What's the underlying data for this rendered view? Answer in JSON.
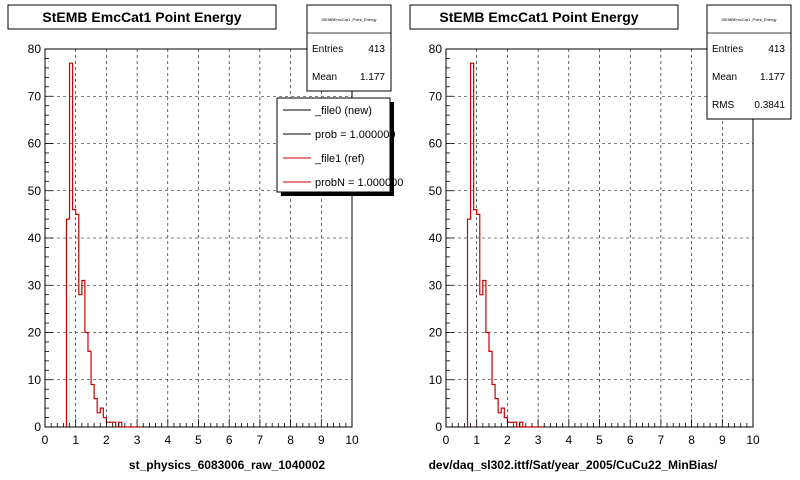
{
  "chart_data": [
    {
      "type": "step",
      "title": "StEMB EmcCat1 Point Energy",
      "xlabel": "st_physics_6083006_raw_1040002",
      "xlim": [
        0,
        10
      ],
      "ylim": [
        0,
        80
      ],
      "x_ticks": [
        0,
        1,
        2,
        3,
        4,
        5,
        6,
        7,
        8,
        9,
        10
      ],
      "y_ticks": [
        0,
        10,
        20,
        30,
        40,
        50,
        60,
        70,
        80
      ],
      "grid": true,
      "bin_width": 0.1,
      "x_start": 0.7,
      "series": [
        {
          "name": "_file1 (ref)",
          "color": "#cc0000",
          "values": [
            44,
            77,
            46,
            45,
            28,
            31,
            20,
            16,
            9,
            6,
            3,
            4,
            2,
            1,
            1,
            1,
            0,
            1,
            0,
            0,
            0,
            0,
            0,
            0
          ]
        }
      ],
      "stats": {
        "header": "StEMBEmcCat1_Point_Energy",
        "entries_label": "Entries",
        "entries": "413",
        "mean_label": "Mean",
        "mean": "1.177"
      },
      "legend": [
        {
          "label": "_file0 (new)",
          "color": "#000000"
        },
        {
          "label": "prob = 1.000000",
          "color": "#000000"
        },
        {
          "label": "_file1 (ref)",
          "color": "#cc0000"
        },
        {
          "label": "probN = 1.000000",
          "color": "#cc0000"
        }
      ]
    },
    {
      "type": "step",
      "title": "StEMB EmcCat1 Point Energy",
      "xlabel": "dev/daq_sl302.ittf/Sat/year_2005/CuCu22_MinBias/",
      "xlim": [
        0,
        10
      ],
      "ylim": [
        0,
        80
      ],
      "x_ticks": [
        0,
        1,
        2,
        3,
        4,
        5,
        6,
        7,
        8,
        9,
        10
      ],
      "y_ticks": [
        0,
        10,
        20,
        30,
        40,
        50,
        60,
        70,
        80
      ],
      "grid": true,
      "bin_width": 0.1,
      "x_start": 0.7,
      "series": [
        {
          "name": "",
          "color": "#cc0000",
          "values": [
            44,
            77,
            46,
            45,
            28,
            31,
            20,
            16,
            9,
            6,
            3,
            4,
            2,
            1,
            1,
            1,
            0,
            1,
            0,
            0,
            0,
            0,
            0,
            0
          ]
        }
      ],
      "stats": {
        "header": "StEMBEmcCat1_Point_Energy",
        "entries_label": "Entries",
        "entries": "413",
        "mean_label": "Mean",
        "mean": "1.177",
        "rms_label": "RMS",
        "rms": "0.3841"
      }
    }
  ]
}
